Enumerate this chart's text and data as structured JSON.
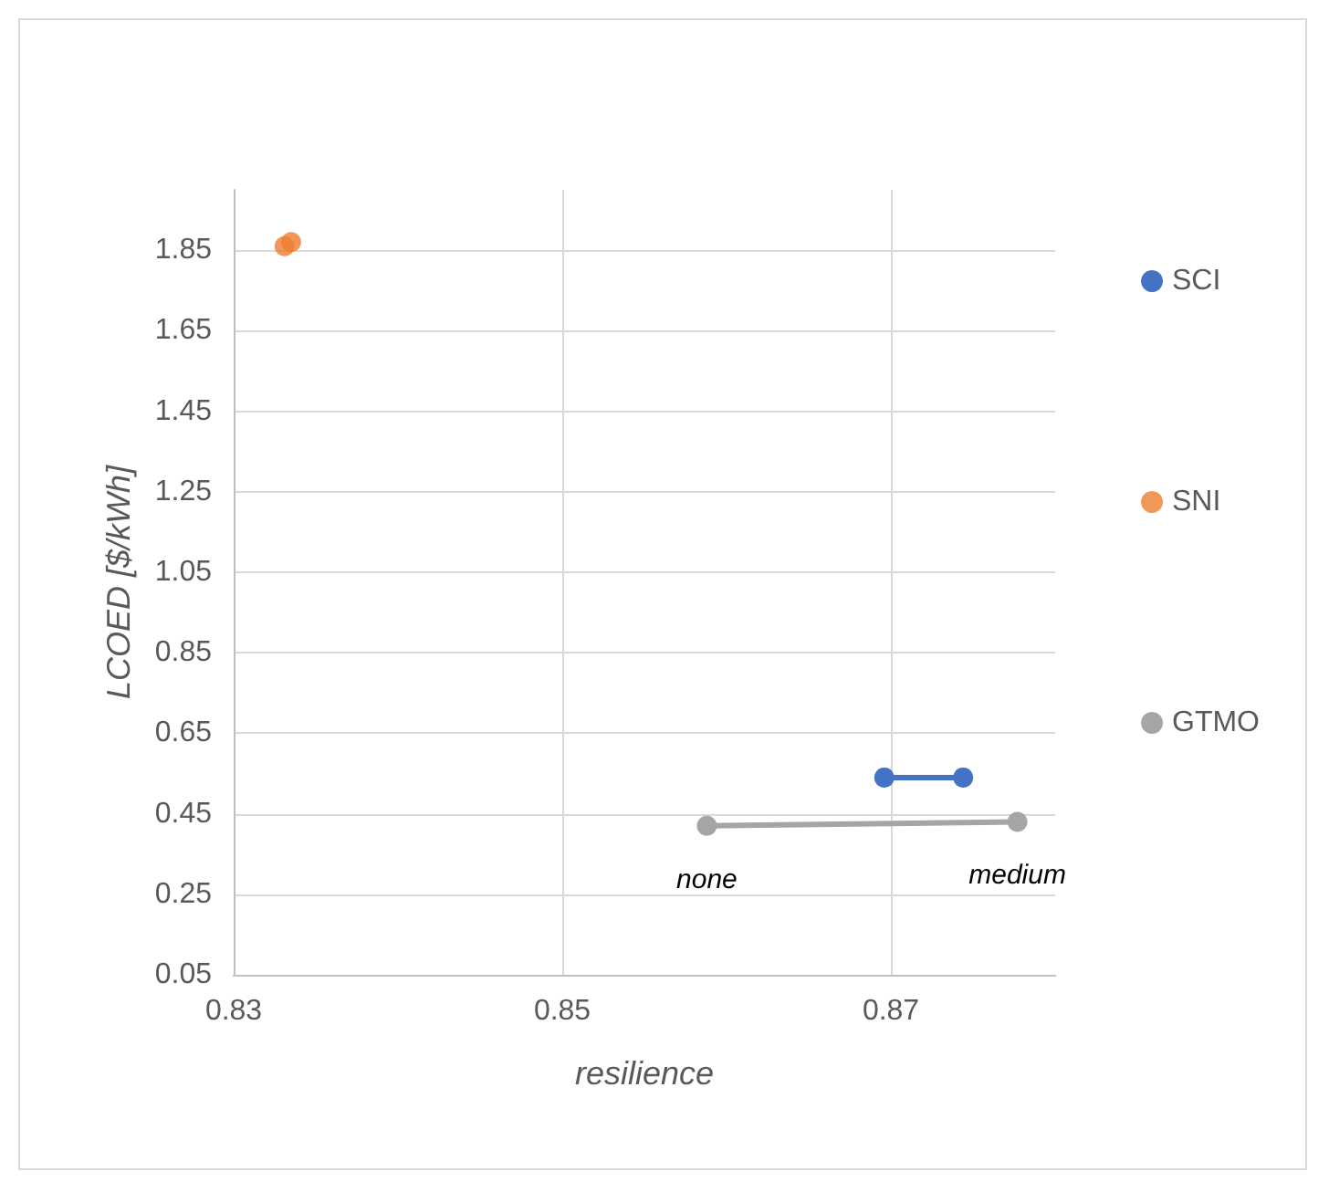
{
  "chart_data": {
    "type": "line",
    "xlabel": "resilience",
    "ylabel": "LCOED [$/kWh]",
    "xlim": [
      0.83,
      0.88
    ],
    "xticks": [
      0.83,
      0.85,
      0.87
    ],
    "ylim": [
      0.05,
      2.0
    ],
    "yticks": [
      0.05,
      0.25,
      0.45,
      0.65,
      0.85,
      1.05,
      1.25,
      1.45,
      1.65,
      1.85
    ],
    "grid": true,
    "legend": "right",
    "marker": "circle",
    "line_style": "solid",
    "series": [
      {
        "name": "SCI",
        "color": "#4472c4",
        "x": [
          0.8696,
          0.8744
        ],
        "values": [
          0.54,
          0.54
        ]
      },
      {
        "name": "SNI",
        "type": "scatter",
        "color": "#ed7d31",
        "x": [
          0.8331,
          0.8335
        ],
        "values": [
          1.86,
          1.87
        ]
      },
      {
        "name": "GTMO",
        "color": "#a5a5a5",
        "x": [
          0.8588,
          0.8777
        ],
        "values": [
          0.42,
          0.43
        ]
      }
    ],
    "annotations": [
      {
        "text": "none",
        "x": 0.8588,
        "y": 0.42
      },
      {
        "text": "medium",
        "x": 0.8777,
        "y": 0.43
      }
    ]
  }
}
